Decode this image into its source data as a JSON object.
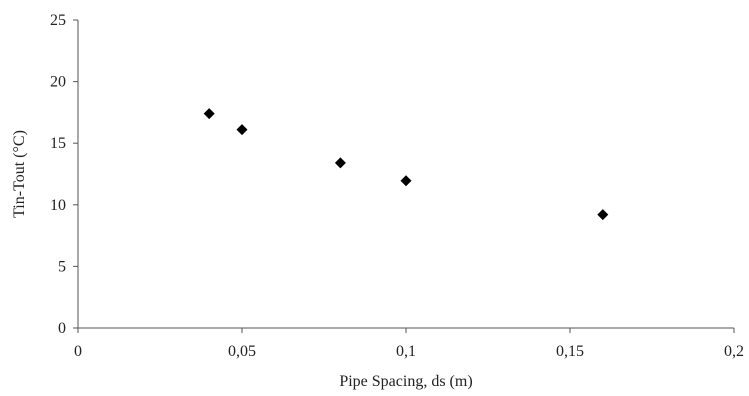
{
  "chart_data": {
    "type": "scatter",
    "title": "",
    "xlabel": "Pipe Spacing, ds (m)",
    "ylabel": "Tin-Tout (°C)",
    "xlim": [
      0,
      0.2
    ],
    "ylim": [
      0,
      25
    ],
    "grid": false,
    "legend": "none",
    "marker": "diamond",
    "marker_color": "#000000",
    "x_ticks": [
      {
        "value": 0,
        "label": "0"
      },
      {
        "value": 0.05,
        "label": "0,05"
      },
      {
        "value": 0.1,
        "label": "0,1"
      },
      {
        "value": 0.15,
        "label": "0,15"
      },
      {
        "value": 0.2,
        "label": "0,2"
      }
    ],
    "y_ticks": [
      {
        "value": 0,
        "label": "0"
      },
      {
        "value": 5,
        "label": "5"
      },
      {
        "value": 10,
        "label": "10"
      },
      {
        "value": 15,
        "label": "15"
      },
      {
        "value": 20,
        "label": "20"
      },
      {
        "value": 25,
        "label": "25"
      }
    ],
    "series": [
      {
        "points": [
          {
            "x": 0.04,
            "y": 17.4
          },
          {
            "x": 0.05,
            "y": 16.1
          },
          {
            "x": 0.08,
            "y": 13.4
          },
          {
            "x": 0.1,
            "y": 11.95
          },
          {
            "x": 0.16,
            "y": 9.2
          }
        ]
      }
    ]
  }
}
